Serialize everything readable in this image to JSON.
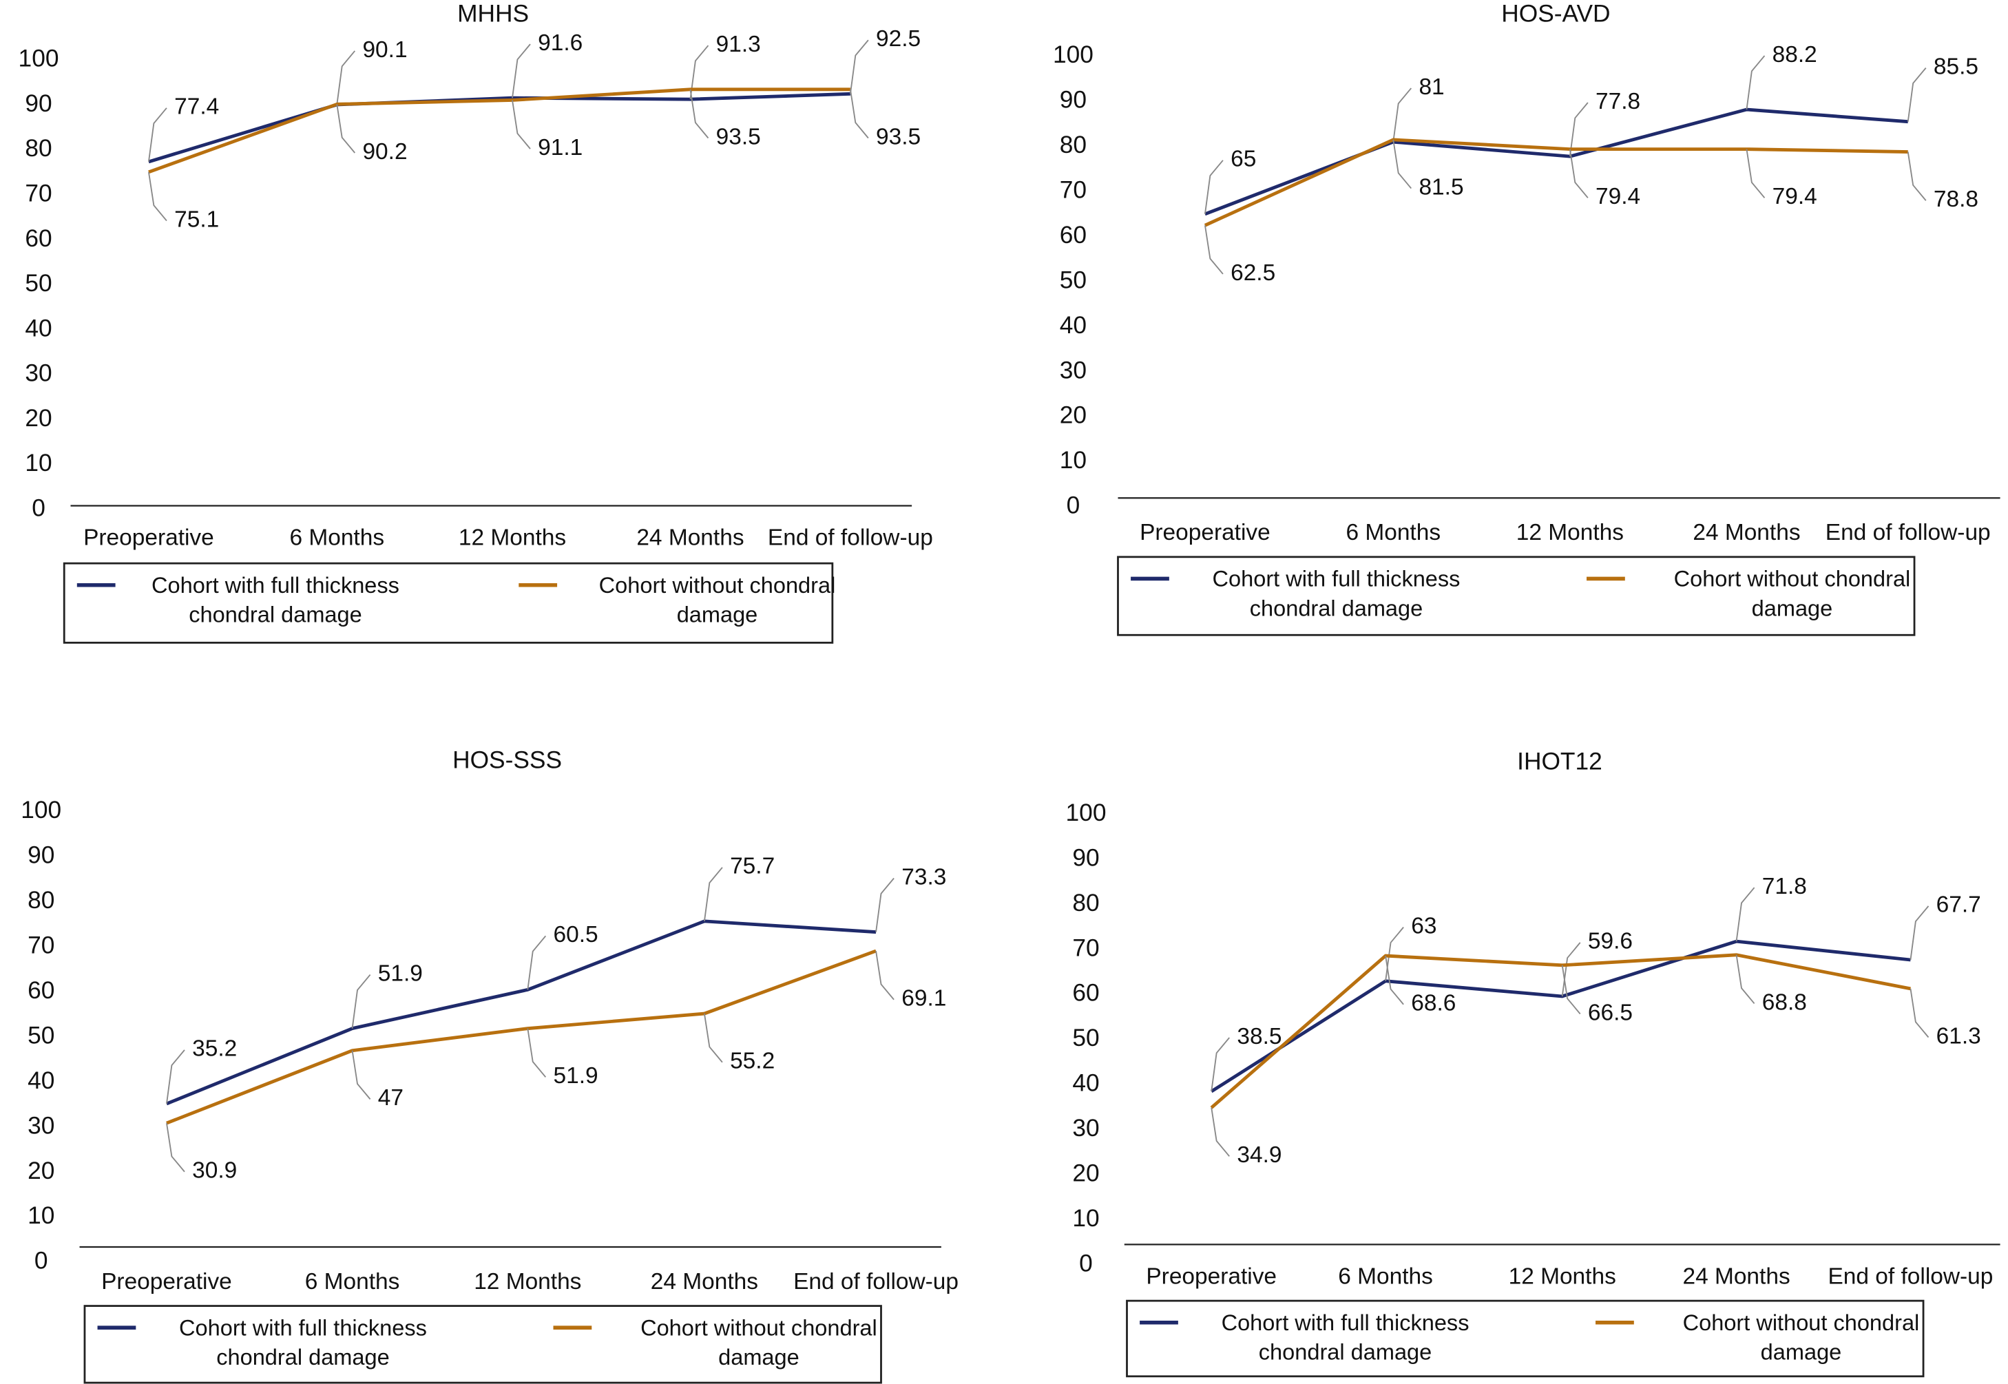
{
  "chart_data": [
    {
      "type": "line",
      "title": "MHHS",
      "categories": [
        "Preoperative",
        "6 Months",
        "12 Months",
        "24 Months",
        "End of follow-up"
      ],
      "series": [
        {
          "name": "Cohort with full thickness chondral damage",
          "color": "#1f2a6b",
          "values": [
            77.4,
            90.1,
            91.6,
            91.3,
            92.5
          ]
        },
        {
          "name": "Cohort without chondral damage",
          "color": "#b8700f",
          "values": [
            75.1,
            90.2,
            91.1,
            93.5,
            93.5
          ]
        }
      ],
      "ylim": [
        0,
        100
      ],
      "yticks": [
        0,
        10,
        20,
        30,
        40,
        50,
        60,
        70,
        80,
        90,
        100
      ],
      "grid": false,
      "legend": "bottom"
    },
    {
      "type": "line",
      "title": "HOS-AVD",
      "categories": [
        "Preoperative",
        "6 Months",
        "12 Months",
        "24 Months",
        "End of follow-up"
      ],
      "series": [
        {
          "name": "Cohort with full thickness chondral damage",
          "color": "#1f2a6b",
          "values": [
            65,
            81,
            77.8,
            88.2,
            85.5
          ]
        },
        {
          "name": "Cohort without chondral damage",
          "color": "#b8700f",
          "values": [
            62.5,
            81.5,
            79.4,
            79.4,
            78.8
          ]
        }
      ],
      "ylim": [
        0,
        100
      ],
      "yticks": [
        0,
        10,
        20,
        30,
        40,
        50,
        60,
        70,
        80,
        90,
        100
      ],
      "grid": false,
      "legend": "bottom"
    },
    {
      "type": "line",
      "title": "HOS-SSS",
      "categories": [
        "Preoperative",
        "6 Months",
        "12 Months",
        "24 Months",
        "End of follow-up"
      ],
      "series": [
        {
          "name": "Cohort with full thickness chondral damage",
          "color": "#1f2a6b",
          "values": [
            35.2,
            51.9,
            60.5,
            75.7,
            73.3
          ]
        },
        {
          "name": "Cohort without chondral damage",
          "color": "#b8700f",
          "values": [
            30.9,
            47,
            51.9,
            55.2,
            69.1
          ]
        }
      ],
      "ylim": [
        0,
        100
      ],
      "yticks": [
        0,
        10,
        20,
        30,
        40,
        50,
        60,
        70,
        80,
        90,
        100
      ],
      "grid": false,
      "legend": "bottom"
    },
    {
      "type": "line",
      "title": "IHOT12",
      "categories": [
        "Preoperative",
        "6 Months",
        "12 Months",
        "24 Months",
        "End of follow-up"
      ],
      "series": [
        {
          "name": "Cohort with full thickness chondral damage",
          "color": "#1f2a6b",
          "values": [
            38.5,
            63,
            59.6,
            71.8,
            67.7
          ]
        },
        {
          "name": "Cohort without chondral damage",
          "color": "#b8700f",
          "values": [
            34.9,
            68.6,
            66.5,
            68.8,
            61.3
          ]
        }
      ],
      "ylim": [
        0,
        100
      ],
      "yticks": [
        0,
        10,
        20,
        30,
        40,
        50,
        60,
        70,
        80,
        90,
        100
      ],
      "grid": false,
      "legend": "bottom"
    }
  ]
}
